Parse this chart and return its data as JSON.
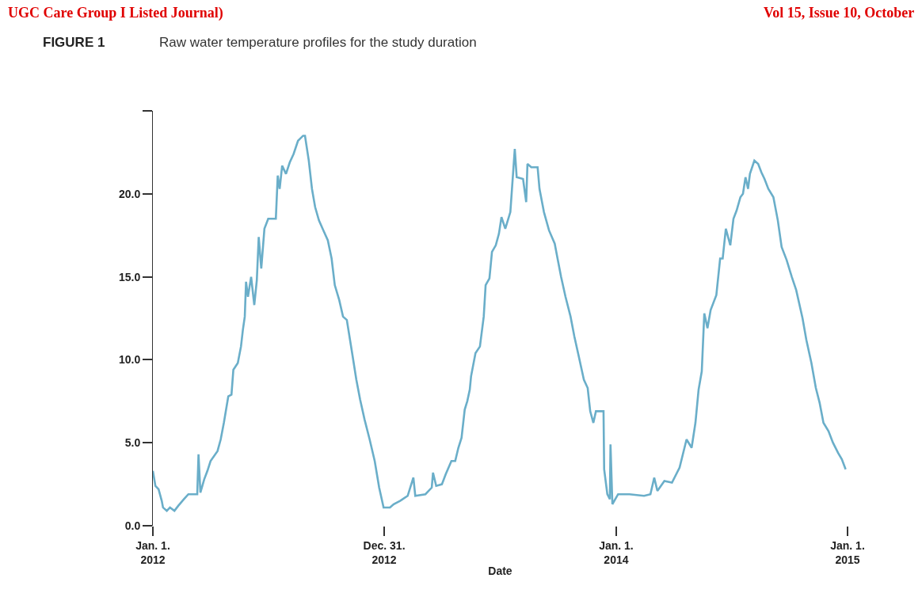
{
  "chart_data": {
    "type": "line",
    "title": "FIGURE 1",
    "subtitle": "Raw water temperature profiles for the study duration",
    "xlabel": "Date",
    "annotations": [
      "UGC Care Group I Listed Journal)",
      "Vol 15, Issue 10, October"
    ],
    "x": [
      "2012-01-01",
      "2012-01-05",
      "2012-01-10",
      "2012-01-15",
      "2012-01-17",
      "2012-01-23",
      "2012-01-28",
      "2012-02-04",
      "2012-02-10",
      "2012-02-19",
      "2012-02-26",
      "2012-03-11",
      "2012-03-13",
      "2012-03-16",
      "2012-03-22",
      "2012-03-27",
      "2012-04-01",
      "2012-04-12",
      "2012-04-17",
      "2012-04-22",
      "2012-04-29",
      "2012-05-04",
      "2012-05-07",
      "2012-05-14",
      "2012-05-19",
      "2012-05-22",
      "2012-05-25",
      "2012-05-27",
      "2012-05-30",
      "2012-06-04",
      "2012-06-09",
      "2012-06-13",
      "2012-06-16",
      "2012-06-20",
      "2012-06-25",
      "2012-07-01",
      "2012-07-13",
      "2012-07-16",
      "2012-07-19",
      "2012-07-23",
      "2012-07-29",
      "2012-08-04",
      "2012-08-10",
      "2012-08-17",
      "2012-08-25",
      "2012-08-28",
      "2012-09-03",
      "2012-09-08",
      "2012-09-13",
      "2012-09-19",
      "2012-09-26",
      "2012-10-03",
      "2012-10-09",
      "2012-10-14",
      "2012-10-21",
      "2012-10-27",
      "2012-11-02",
      "2012-11-10",
      "2012-11-17",
      "2012-11-23",
      "2012-11-30",
      "2012-12-08",
      "2012-12-16",
      "2012-12-23",
      "2012-12-30",
      "2013-01-09",
      "2013-01-15",
      "2013-01-25",
      "2013-02-06",
      "2013-02-15",
      "2013-02-18",
      "2013-03-06",
      "2013-03-16",
      "2013-03-18",
      "2013-03-23",
      "2013-04-01",
      "2013-04-07",
      "2013-04-16",
      "2013-04-22",
      "2013-04-27",
      "2013-05-02",
      "2013-05-07",
      "2013-05-11",
      "2013-05-15",
      "2013-05-17",
      "2013-05-24",
      "2013-05-31",
      "2013-06-06",
      "2013-06-09",
      "2013-06-15",
      "2013-06-19",
      "2013-06-25",
      "2013-06-30",
      "2013-07-04",
      "2013-07-10",
      "2013-07-18",
      "2013-07-25",
      "2013-07-28",
      "2013-08-07",
      "2013-08-12",
      "2013-08-14",
      "2013-08-20",
      "2013-08-30",
      "2013-09-02",
      "2013-09-09",
      "2013-09-17",
      "2013-09-26",
      "2013-10-01",
      "2013-10-06",
      "2013-10-13",
      "2013-10-21",
      "2013-10-27",
      "2013-11-03",
      "2013-11-11",
      "2013-11-17",
      "2013-11-21",
      "2013-11-26",
      "2013-11-30",
      "2013-12-12",
      "2013-12-13",
      "2013-12-18",
      "2013-12-22",
      "2013-12-23",
      "2013-12-26",
      "2014-01-04",
      "2014-01-22",
      "2014-02-14",
      "2014-02-24",
      "2014-03-02",
      "2014-03-07",
      "2014-03-18",
      "2014-03-30",
      "2014-04-11",
      "2014-04-22",
      "2014-04-30",
      "2014-05-06",
      "2014-05-11",
      "2014-05-16",
      "2014-05-20",
      "2014-05-25",
      "2014-05-30",
      "2014-06-08",
      "2014-06-14",
      "2014-06-18",
      "2014-06-23",
      "2014-06-30",
      "2014-07-05",
      "2014-07-10",
      "2014-07-16",
      "2014-07-20",
      "2014-07-24",
      "2014-07-28",
      "2014-07-31",
      "2014-08-07",
      "2014-08-13",
      "2014-08-18",
      "2014-08-23",
      "2014-08-29",
      "2014-09-06",
      "2014-09-13",
      "2014-09-19",
      "2014-09-27",
      "2014-10-05",
      "2014-10-12",
      "2014-10-22",
      "2014-10-28",
      "2014-11-05",
      "2014-11-12",
      "2014-11-18",
      "2014-11-24",
      "2014-12-02",
      "2014-12-09",
      "2014-12-17",
      "2014-12-23",
      "2014-12-29"
    ],
    "series": [
      {
        "color": "#6aaec9",
        "values": [
          3.3,
          2.4,
          2.2,
          1.5,
          1.1,
          0.9,
          1.1,
          0.9,
          1.2,
          1.6,
          1.9,
          1.9,
          4.3,
          2.0,
          2.8,
          3.3,
          3.9,
          4.5,
          5.2,
          6.2,
          7.8,
          7.9,
          9.4,
          9.8,
          10.8,
          11.8,
          12.6,
          14.7,
          13.8,
          15.0,
          13.3,
          14.8,
          17.4,
          15.5,
          17.9,
          18.5,
          18.5,
          21.1,
          20.3,
          21.7,
          21.2,
          21.9,
          22.4,
          23.2,
          23.5,
          23.5,
          22.0,
          20.3,
          19.2,
          18.4,
          17.8,
          17.2,
          16.1,
          14.5,
          13.6,
          12.6,
          12.4,
          10.5,
          8.8,
          7.6,
          6.4,
          5.2,
          3.9,
          2.3,
          1.1,
          1.1,
          1.3,
          1.5,
          1.8,
          2.9,
          1.8,
          1.9,
          2.3,
          3.2,
          2.4,
          2.5,
          3.1,
          3.9,
          3.9,
          4.7,
          5.3,
          7.0,
          7.5,
          8.2,
          9.0,
          10.4,
          10.8,
          12.6,
          14.5,
          14.9,
          16.5,
          16.9,
          17.6,
          18.6,
          17.9,
          18.9,
          22.7,
          21.0,
          20.9,
          19.5,
          21.8,
          21.6,
          21.6,
          20.3,
          18.9,
          17.8,
          17.0,
          16.0,
          15.0,
          13.8,
          12.6,
          11.4,
          10.2,
          8.8,
          8.3,
          6.9,
          6.2,
          6.9,
          6.9,
          3.4,
          1.9,
          1.6,
          4.9,
          1.3,
          1.9,
          1.9,
          1.8,
          1.9,
          2.9,
          2.1,
          2.7,
          2.6,
          3.5,
          5.2,
          4.7,
          6.2,
          8.2,
          9.3,
          12.8,
          11.9,
          13.0,
          13.9,
          16.1,
          16.1,
          17.9,
          16.9,
          18.5,
          19.0,
          19.8,
          20.0,
          21.0,
          20.3,
          21.2,
          22.0,
          21.8,
          21.3,
          20.9,
          20.3,
          19.8,
          18.4,
          16.8,
          16.0,
          15.0,
          14.2,
          12.5,
          11.2,
          9.8,
          8.3,
          7.4,
          6.2,
          5.7,
          5.0,
          4.4,
          4.0,
          3.4
        ]
      }
    ],
    "xlim": [
      "2012-01-01",
      "2015-01-01"
    ],
    "xticks": [
      {
        "value": "2012-01-01",
        "label": "Jan. 1.\n2012"
      },
      {
        "value": "2012-12-31",
        "label": "Dec. 31.\n2012"
      },
      {
        "value": "2014-01-01",
        "label": "Jan. 1.\n2014"
      },
      {
        "value": "2015-01-01",
        "label": "Jan. 1.\n2015"
      }
    ],
    "ylim": [
      0,
      25
    ],
    "yticks": [
      {
        "value": 0,
        "label": "0.0"
      },
      {
        "value": 5,
        "label": "5.0"
      },
      {
        "value": 10,
        "label": "10.0"
      },
      {
        "value": 15,
        "label": "15.0"
      },
      {
        "value": 20,
        "label": "20.0"
      },
      {
        "value": 25,
        "label": null
      }
    ],
    "marker": "none",
    "line_style": "solid"
  }
}
